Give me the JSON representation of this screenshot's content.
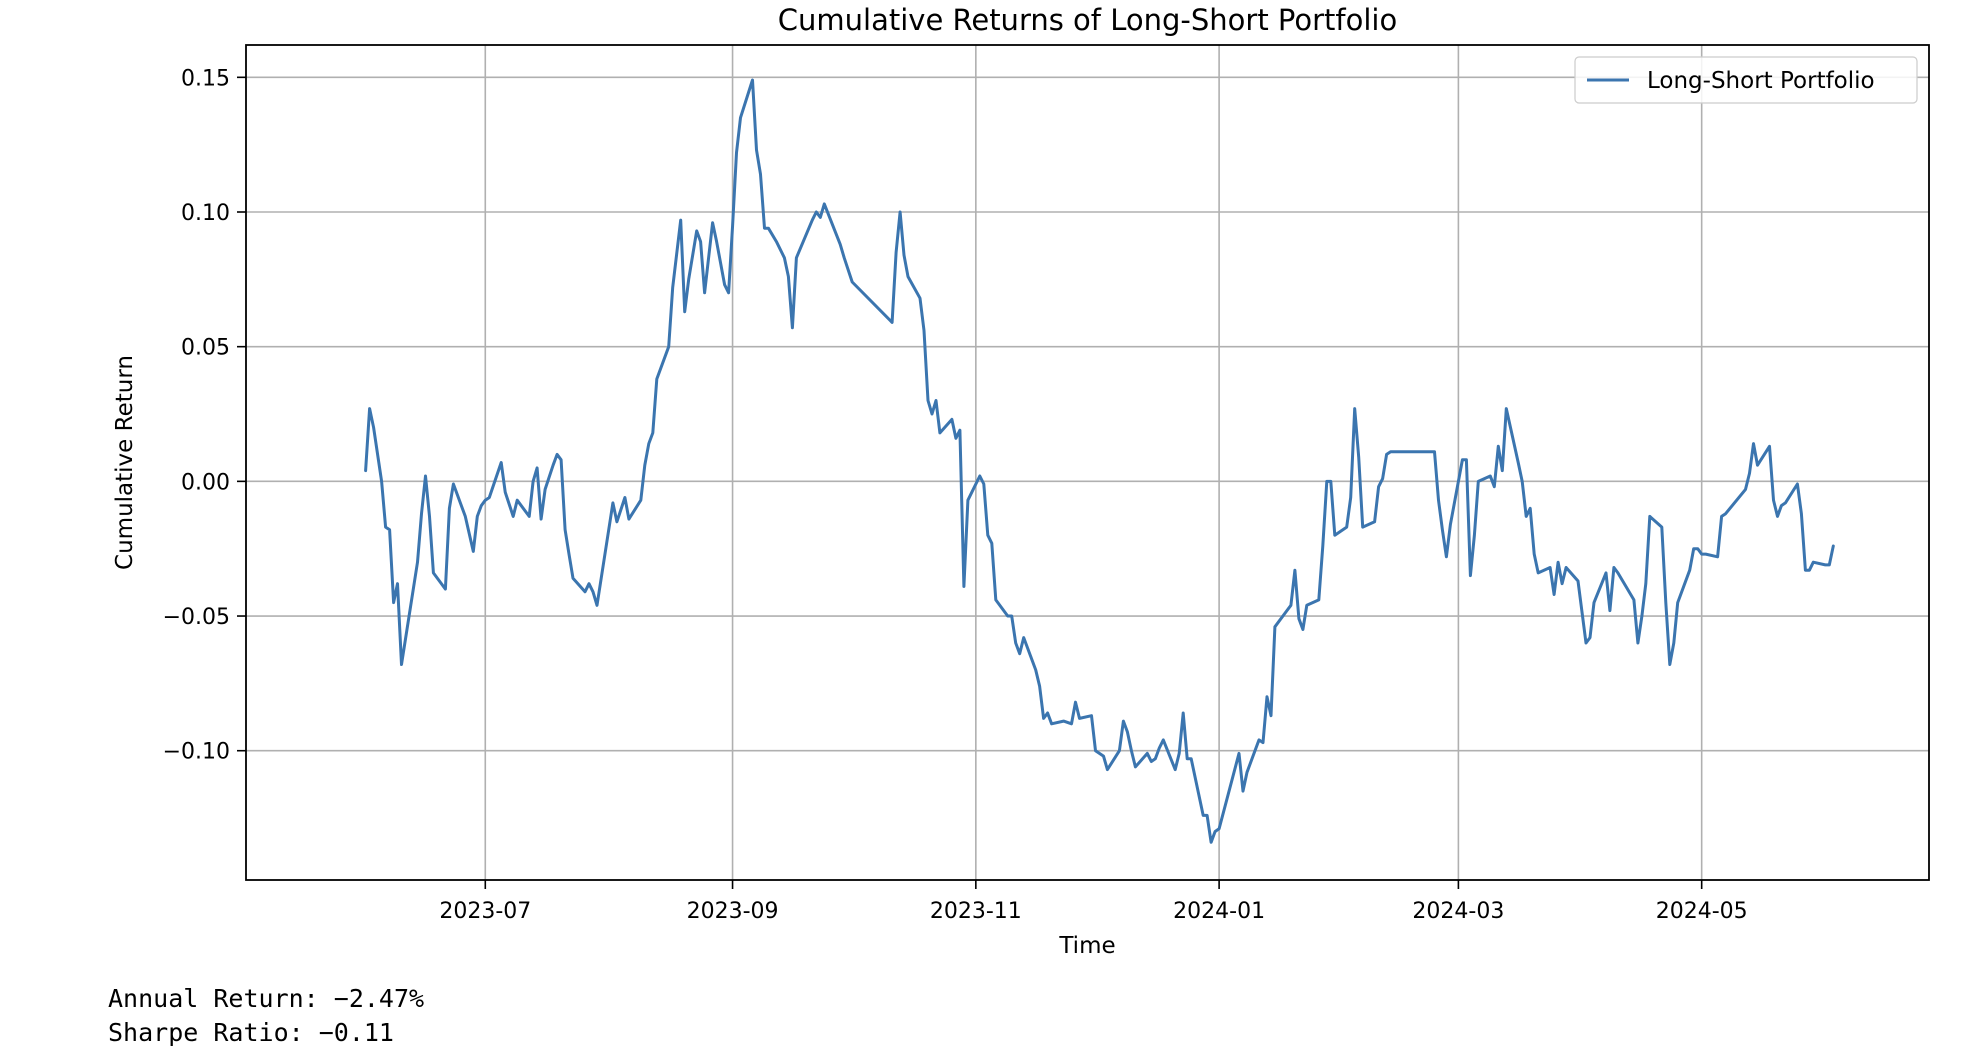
{
  "chart_data": {
    "type": "line",
    "title": "Cumulative Returns of Long-Short Portfolio",
    "xlabel": "Time",
    "ylabel": "Cumulative Return",
    "x_tick_labels": [
      "2023-07",
      "2023-09",
      "2023-11",
      "2024-01",
      "2024-03",
      "2024-05"
    ],
    "x_ticks": [
      "2023-07-01",
      "2023-09-01",
      "2023-11-01",
      "2024-01-01",
      "2024-03-01",
      "2024-05-01"
    ],
    "y_ticks": [
      -0.1,
      -0.05,
      0.0,
      0.05,
      0.1,
      0.15
    ],
    "y_tick_labels": [
      "−0.10",
      "−0.05",
      "0.00",
      "0.05",
      "0.10",
      "0.15"
    ],
    "xlim": [
      "2023-05-02",
      "2024-06-27"
    ],
    "ylim": [
      -0.148,
      0.162
    ],
    "grid": true,
    "legend_position": "top-right",
    "color": "#3b75af",
    "series": [
      {
        "name": "Long-Short Portfolio",
        "points": [
          [
            "2023-06-01",
            0.004
          ],
          [
            "2023-06-02",
            0.027
          ],
          [
            "2023-06-03",
            0.02
          ],
          [
            "2023-06-05",
            0.0
          ],
          [
            "2023-06-06",
            -0.017
          ],
          [
            "2023-06-07",
            -0.018
          ],
          [
            "2023-06-08",
            -0.045
          ],
          [
            "2023-06-09",
            -0.038
          ],
          [
            "2023-06-10",
            -0.068
          ],
          [
            "2023-06-14",
            -0.03
          ],
          [
            "2023-06-15",
            -0.012
          ],
          [
            "2023-06-16",
            0.002
          ],
          [
            "2023-06-17",
            -0.013
          ],
          [
            "2023-06-18",
            -0.034
          ],
          [
            "2023-06-21",
            -0.04
          ],
          [
            "2023-06-22",
            -0.01
          ],
          [
            "2023-06-23",
            -0.001
          ],
          [
            "2023-06-26",
            -0.013
          ],
          [
            "2023-06-28",
            -0.026
          ],
          [
            "2023-06-29",
            -0.013
          ],
          [
            "2023-06-30",
            -0.009
          ],
          [
            "2023-07-01",
            -0.007
          ],
          [
            "2023-07-02",
            -0.006
          ],
          [
            "2023-07-05",
            0.007
          ],
          [
            "2023-07-06",
            -0.004
          ],
          [
            "2023-07-08",
            -0.013
          ],
          [
            "2023-07-09",
            -0.007
          ],
          [
            "2023-07-12",
            -0.013
          ],
          [
            "2023-07-13",
            0.0
          ],
          [
            "2023-07-14",
            0.005
          ],
          [
            "2023-07-15",
            -0.014
          ],
          [
            "2023-07-16",
            -0.003
          ],
          [
            "2023-07-18",
            0.006
          ],
          [
            "2023-07-19",
            0.01
          ],
          [
            "2023-07-20",
            0.008
          ],
          [
            "2023-07-21",
            -0.018
          ],
          [
            "2023-07-22",
            -0.027
          ],
          [
            "2023-07-23",
            -0.036
          ],
          [
            "2023-07-26",
            -0.041
          ],
          [
            "2023-07-27",
            -0.038
          ],
          [
            "2023-07-28",
            -0.041
          ],
          [
            "2023-07-29",
            -0.046
          ],
          [
            "2023-08-02",
            -0.008
          ],
          [
            "2023-08-03",
            -0.015
          ],
          [
            "2023-08-05",
            -0.006
          ],
          [
            "2023-08-06",
            -0.014
          ],
          [
            "2023-08-09",
            -0.007
          ],
          [
            "2023-08-10",
            0.006
          ],
          [
            "2023-08-11",
            0.014
          ],
          [
            "2023-08-12",
            0.018
          ],
          [
            "2023-08-13",
            0.038
          ],
          [
            "2023-08-16",
            0.05
          ],
          [
            "2023-08-17",
            0.072
          ],
          [
            "2023-08-19",
            0.097
          ],
          [
            "2023-08-20",
            0.063
          ],
          [
            "2023-08-21",
            0.075
          ],
          [
            "2023-08-23",
            0.093
          ],
          [
            "2023-08-24",
            0.089
          ],
          [
            "2023-08-25",
            0.07
          ],
          [
            "2023-08-27",
            0.096
          ],
          [
            "2023-08-28",
            0.089
          ],
          [
            "2023-08-30",
            0.073
          ],
          [
            "2023-08-31",
            0.07
          ],
          [
            "2023-09-01",
            0.095
          ],
          [
            "2023-09-02",
            0.122
          ],
          [
            "2023-09-03",
            0.135
          ],
          [
            "2023-09-06",
            0.149
          ],
          [
            "2023-09-07",
            0.123
          ],
          [
            "2023-09-08",
            0.114
          ],
          [
            "2023-09-09",
            0.094
          ],
          [
            "2023-09-10",
            0.094
          ],
          [
            "2023-09-12",
            0.089
          ],
          [
            "2023-09-14",
            0.083
          ],
          [
            "2023-09-15",
            0.076
          ],
          [
            "2023-09-16",
            0.057
          ],
          [
            "2023-09-17",
            0.083
          ],
          [
            "2023-09-21",
            0.097
          ],
          [
            "2023-09-22",
            0.1
          ],
          [
            "2023-09-23",
            0.098
          ],
          [
            "2023-09-24",
            0.103
          ],
          [
            "2023-09-28",
            0.088
          ],
          [
            "2023-09-29",
            0.083
          ],
          [
            "2023-10-01",
            0.074
          ],
          [
            "2023-10-11",
            0.059
          ],
          [
            "2023-10-12",
            0.085
          ],
          [
            "2023-10-13",
            0.1
          ],
          [
            "2023-10-14",
            0.084
          ],
          [
            "2023-10-15",
            0.076
          ],
          [
            "2023-10-18",
            0.068
          ],
          [
            "2023-10-19",
            0.056
          ],
          [
            "2023-10-20",
            0.03
          ],
          [
            "2023-10-21",
            0.025
          ],
          [
            "2023-10-22",
            0.03
          ],
          [
            "2023-10-23",
            0.018
          ],
          [
            "2023-10-26",
            0.023
          ],
          [
            "2023-10-27",
            0.016
          ],
          [
            "2023-10-28",
            0.019
          ],
          [
            "2023-10-29",
            -0.039
          ],
          [
            "2023-10-30",
            -0.007
          ],
          [
            "2023-11-02",
            0.002
          ],
          [
            "2023-11-03",
            -0.001
          ],
          [
            "2023-11-04",
            -0.02
          ],
          [
            "2023-11-05",
            -0.023
          ],
          [
            "2023-11-06",
            -0.044
          ],
          [
            "2023-11-09",
            -0.05
          ],
          [
            "2023-11-10",
            -0.05
          ],
          [
            "2023-11-11",
            -0.06
          ],
          [
            "2023-11-12",
            -0.064
          ],
          [
            "2023-11-13",
            -0.058
          ],
          [
            "2023-11-16",
            -0.07
          ],
          [
            "2023-11-17",
            -0.076
          ],
          [
            "2023-11-18",
            -0.088
          ],
          [
            "2023-11-19",
            -0.086
          ],
          [
            "2023-11-20",
            -0.09
          ],
          [
            "2023-11-23",
            -0.089
          ],
          [
            "2023-11-25",
            -0.09
          ],
          [
            "2023-11-26",
            -0.082
          ],
          [
            "2023-11-27",
            -0.088
          ],
          [
            "2023-11-30",
            -0.087
          ],
          [
            "2023-12-01",
            -0.1
          ],
          [
            "2023-12-03",
            -0.102
          ],
          [
            "2023-12-04",
            -0.107
          ],
          [
            "2023-12-07",
            -0.1
          ],
          [
            "2023-12-08",
            -0.089
          ],
          [
            "2023-12-09",
            -0.093
          ],
          [
            "2023-12-10",
            -0.1
          ],
          [
            "2023-12-11",
            -0.106
          ],
          [
            "2023-12-14",
            -0.101
          ],
          [
            "2023-12-15",
            -0.104
          ],
          [
            "2023-12-16",
            -0.103
          ],
          [
            "2023-12-17",
            -0.099
          ],
          [
            "2023-12-18",
            -0.096
          ],
          [
            "2023-12-21",
            -0.107
          ],
          [
            "2023-12-22",
            -0.101
          ],
          [
            "2023-12-23",
            -0.086
          ],
          [
            "2023-12-24",
            -0.103
          ],
          [
            "2023-12-25",
            -0.103
          ],
          [
            "2023-12-28",
            -0.124
          ],
          [
            "2023-12-29",
            -0.124
          ],
          [
            "2023-12-30",
            -0.134
          ],
          [
            "2023-12-31",
            -0.13
          ],
          [
            "2024-01-01",
            -0.129
          ],
          [
            "2024-01-06",
            -0.101
          ],
          [
            "2024-01-07",
            -0.115
          ],
          [
            "2024-01-08",
            -0.108
          ],
          [
            "2024-01-11",
            -0.096
          ],
          [
            "2024-01-12",
            -0.097
          ],
          [
            "2024-01-13",
            -0.08
          ],
          [
            "2024-01-14",
            -0.087
          ],
          [
            "2024-01-15",
            -0.054
          ],
          [
            "2024-01-18",
            -0.048
          ],
          [
            "2024-01-19",
            -0.046
          ],
          [
            "2024-01-20",
            -0.033
          ],
          [
            "2024-01-21",
            -0.051
          ],
          [
            "2024-01-22",
            -0.055
          ],
          [
            "2024-01-23",
            -0.046
          ],
          [
            "2024-01-26",
            -0.044
          ],
          [
            "2024-01-27",
            -0.024
          ],
          [
            "2024-01-28",
            0.0
          ],
          [
            "2024-01-29",
            0.0
          ],
          [
            "2024-01-30",
            -0.02
          ],
          [
            "2024-02-02",
            -0.017
          ],
          [
            "2024-02-03",
            -0.006
          ],
          [
            "2024-02-04",
            0.027
          ],
          [
            "2024-02-05",
            0.009
          ],
          [
            "2024-02-06",
            -0.017
          ],
          [
            "2024-02-09",
            -0.015
          ],
          [
            "2024-02-10",
            -0.002
          ],
          [
            "2024-02-11",
            0.001
          ],
          [
            "2024-02-12",
            0.01
          ],
          [
            "2024-02-13",
            0.011
          ],
          [
            "2024-02-24",
            0.011
          ],
          [
            "2024-02-25",
            -0.007
          ],
          [
            "2024-02-26",
            -0.018
          ],
          [
            "2024-02-27",
            -0.028
          ],
          [
            "2024-02-28",
            -0.016
          ],
          [
            "2024-03-02",
            0.008
          ],
          [
            "2024-03-03",
            0.008
          ],
          [
            "2024-03-04",
            -0.035
          ],
          [
            "2024-03-05",
            -0.02
          ],
          [
            "2024-03-06",
            0.0
          ],
          [
            "2024-03-09",
            0.002
          ],
          [
            "2024-03-10",
            -0.002
          ],
          [
            "2024-03-11",
            0.013
          ],
          [
            "2024-03-12",
            0.004
          ],
          [
            "2024-03-13",
            0.027
          ],
          [
            "2024-03-16",
            0.007
          ],
          [
            "2024-03-17",
            0.0
          ],
          [
            "2024-03-18",
            -0.013
          ],
          [
            "2024-03-19",
            -0.01
          ],
          [
            "2024-03-20",
            -0.027
          ],
          [
            "2024-03-21",
            -0.034
          ],
          [
            "2024-03-24",
            -0.032
          ],
          [
            "2024-03-25",
            -0.042
          ],
          [
            "2024-03-26",
            -0.03
          ],
          [
            "2024-03-27",
            -0.038
          ],
          [
            "2024-03-28",
            -0.032
          ],
          [
            "2024-03-31",
            -0.037
          ],
          [
            "2024-04-02",
            -0.06
          ],
          [
            "2024-04-03",
            -0.058
          ],
          [
            "2024-04-04",
            -0.045
          ],
          [
            "2024-04-07",
            -0.034
          ],
          [
            "2024-04-08",
            -0.048
          ],
          [
            "2024-04-09",
            -0.032
          ],
          [
            "2024-04-10",
            -0.034
          ],
          [
            "2024-04-14",
            -0.044
          ],
          [
            "2024-04-15",
            -0.06
          ],
          [
            "2024-04-16",
            -0.05
          ],
          [
            "2024-04-17",
            -0.038
          ],
          [
            "2024-04-18",
            -0.013
          ],
          [
            "2024-04-21",
            -0.017
          ],
          [
            "2024-04-22",
            -0.045
          ],
          [
            "2024-04-23",
            -0.068
          ],
          [
            "2024-04-24",
            -0.06
          ],
          [
            "2024-04-25",
            -0.045
          ],
          [
            "2024-04-28",
            -0.033
          ],
          [
            "2024-04-29",
            -0.025
          ],
          [
            "2024-04-30",
            -0.025
          ],
          [
            "2024-05-01",
            -0.027
          ],
          [
            "2024-05-02",
            -0.027
          ],
          [
            "2024-05-05",
            -0.028
          ],
          [
            "2024-05-06",
            -0.013
          ],
          [
            "2024-05-07",
            -0.012
          ],
          [
            "2024-05-12",
            -0.003
          ],
          [
            "2024-05-13",
            0.003
          ],
          [
            "2024-05-14",
            0.014
          ],
          [
            "2024-05-15",
            0.006
          ],
          [
            "2024-05-18",
            0.013
          ],
          [
            "2024-05-19",
            -0.007
          ],
          [
            "2024-05-20",
            -0.013
          ],
          [
            "2024-05-21",
            -0.009
          ],
          [
            "2024-05-22",
            -0.008
          ],
          [
            "2024-05-25",
            -0.001
          ],
          [
            "2024-05-26",
            -0.012
          ],
          [
            "2024-05-27",
            -0.033
          ],
          [
            "2024-05-28",
            -0.033
          ],
          [
            "2024-05-29",
            -0.03
          ],
          [
            "2024-06-01",
            -0.031
          ],
          [
            "2024-06-02",
            -0.031
          ],
          [
            "2024-06-03",
            -0.024
          ]
        ]
      }
    ]
  },
  "stats": {
    "annual_return": "Annual Return: −2.47%",
    "sharpe_ratio": "Sharpe Ratio: −0.11"
  }
}
